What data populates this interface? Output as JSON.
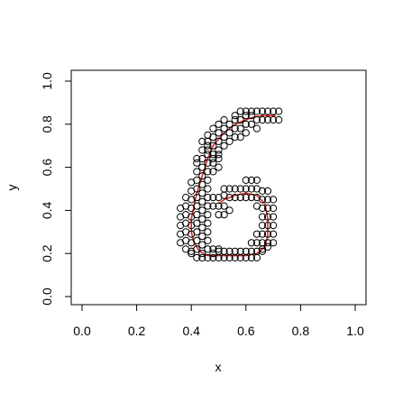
{
  "chart_data": {
    "type": "scatter",
    "title": "",
    "xlabel": "x",
    "ylabel": "y",
    "xlim": [
      0,
      1
    ],
    "ylim": [
      0,
      1
    ],
    "x_ticks": [
      0.0,
      0.2,
      0.4,
      0.6,
      0.8,
      1.0
    ],
    "y_ticks": [
      0.0,
      0.2,
      0.4,
      0.6,
      0.8,
      1.0
    ],
    "x_tick_labels": [
      "0.0",
      "0.2",
      "0.4",
      "0.6",
      "0.8",
      "1.0"
    ],
    "y_tick_labels": [
      "0.0",
      "0.2",
      "0.4",
      "0.6",
      "0.8",
      "1.0"
    ],
    "grid": false,
    "point_color": "#000000",
    "curve_color": "#d62728",
    "series": [
      {
        "kind": "points",
        "x": [
          0.36,
          0.36,
          0.36,
          0.36,
          0.36,
          0.38,
          0.38,
          0.38,
          0.38,
          0.38,
          0.38,
          0.38,
          0.4,
          0.4,
          0.4,
          0.4,
          0.4,
          0.4,
          0.4,
          0.4,
          0.4,
          0.4,
          0.42,
          0.42,
          0.42,
          0.42,
          0.42,
          0.42,
          0.42,
          0.42,
          0.42,
          0.42,
          0.42,
          0.42,
          0.42,
          0.44,
          0.44,
          0.44,
          0.44,
          0.44,
          0.44,
          0.44,
          0.44,
          0.44,
          0.44,
          0.44,
          0.44,
          0.44,
          0.44,
          0.44,
          0.46,
          0.46,
          0.46,
          0.46,
          0.46,
          0.46,
          0.46,
          0.46,
          0.46,
          0.46,
          0.46,
          0.46,
          0.46,
          0.46,
          0.46,
          0.46,
          0.46,
          0.48,
          0.48,
          0.48,
          0.48,
          0.48,
          0.48,
          0.48,
          0.48,
          0.48,
          0.48,
          0.48,
          0.48,
          0.5,
          0.5,
          0.5,
          0.5,
          0.5,
          0.5,
          0.5,
          0.5,
          0.5,
          0.5,
          0.5,
          0.5,
          0.5,
          0.52,
          0.52,
          0.52,
          0.52,
          0.52,
          0.52,
          0.52,
          0.52,
          0.52,
          0.52,
          0.54,
          0.54,
          0.54,
          0.54,
          0.54,
          0.54,
          0.54,
          0.54,
          0.56,
          0.56,
          0.56,
          0.56,
          0.56,
          0.56,
          0.56,
          0.56,
          0.58,
          0.58,
          0.58,
          0.58,
          0.58,
          0.58,
          0.58,
          0.58,
          0.6,
          0.6,
          0.6,
          0.6,
          0.6,
          0.6,
          0.6,
          0.6,
          0.6,
          0.62,
          0.62,
          0.62,
          0.62,
          0.62,
          0.62,
          0.62,
          0.62,
          0.62,
          0.64,
          0.64,
          0.64,
          0.64,
          0.64,
          0.64,
          0.64,
          0.64,
          0.64,
          0.64,
          0.64,
          0.66,
          0.66,
          0.66,
          0.66,
          0.66,
          0.66,
          0.66,
          0.66,
          0.66,
          0.66,
          0.66,
          0.68,
          0.68,
          0.68,
          0.68,
          0.68,
          0.68,
          0.68,
          0.68,
          0.68,
          0.68,
          0.7,
          0.7,
          0.7,
          0.7,
          0.7,
          0.7,
          0.7,
          0.7,
          0.72,
          0.72
        ],
        "y": [
          0.25,
          0.29,
          0.33,
          0.37,
          0.41,
          0.22,
          0.26,
          0.3,
          0.34,
          0.38,
          0.42,
          0.46,
          0.21,
          0.25,
          0.29,
          0.33,
          0.37,
          0.41,
          0.45,
          0.49,
          0.53,
          0.2,
          0.18,
          0.22,
          0.26,
          0.3,
          0.34,
          0.38,
          0.42,
          0.46,
          0.5,
          0.54,
          0.58,
          0.62,
          0.64,
          0.18,
          0.2,
          0.24,
          0.28,
          0.32,
          0.36,
          0.4,
          0.44,
          0.48,
          0.52,
          0.56,
          0.6,
          0.64,
          0.68,
          0.72,
          0.18,
          0.22,
          0.3,
          0.34,
          0.38,
          0.42,
          0.46,
          0.5,
          0.54,
          0.58,
          0.62,
          0.66,
          0.7,
          0.72,
          0.75,
          0.68,
          0.26,
          0.18,
          0.22,
          0.42,
          0.46,
          0.58,
          0.62,
          0.66,
          0.7,
          0.74,
          0.78,
          0.64,
          0.2,
          0.18,
          0.21,
          0.38,
          0.42,
          0.46,
          0.6,
          0.64,
          0.68,
          0.72,
          0.76,
          0.8,
          0.66,
          0.22,
          0.18,
          0.21,
          0.38,
          0.42,
          0.47,
          0.5,
          0.7,
          0.74,
          0.78,
          0.82,
          0.18,
          0.21,
          0.4,
          0.46,
          0.5,
          0.72,
          0.76,
          0.8,
          0.18,
          0.21,
          0.46,
          0.5,
          0.74,
          0.78,
          0.82,
          0.84,
          0.18,
          0.21,
          0.46,
          0.5,
          0.74,
          0.78,
          0.82,
          0.86,
          0.18,
          0.21,
          0.46,
          0.5,
          0.54,
          0.76,
          0.8,
          0.84,
          0.86,
          0.18,
          0.21,
          0.25,
          0.46,
          0.5,
          0.54,
          0.8,
          0.84,
          0.86,
          0.18,
          0.21,
          0.25,
          0.29,
          0.46,
          0.5,
          0.54,
          0.78,
          0.82,
          0.86,
          0.42,
          0.21,
          0.25,
          0.29,
          0.33,
          0.37,
          0.41,
          0.45,
          0.49,
          0.82,
          0.86,
          0.22,
          0.25,
          0.29,
          0.33,
          0.37,
          0.41,
          0.45,
          0.49,
          0.82,
          0.86,
          0.23,
          0.25,
          0.29,
          0.33,
          0.37,
          0.41,
          0.45,
          0.82,
          0.86,
          0.82,
          0.86
        ]
      },
      {
        "kind": "line",
        "x": [
          0.71,
          0.66,
          0.62,
          0.58,
          0.55,
          0.52,
          0.5,
          0.48,
          0.47,
          0.46,
          0.45,
          0.44,
          0.43,
          0.42,
          0.41,
          0.4,
          0.4,
          0.41,
          0.43,
          0.46,
          0.5,
          0.55,
          0.6,
          0.64,
          0.67,
          0.68,
          0.68,
          0.67,
          0.64,
          0.6,
          0.56,
          0.52,
          0.5
        ],
        "y": [
          0.84,
          0.84,
          0.83,
          0.81,
          0.79,
          0.76,
          0.73,
          0.7,
          0.67,
          0.64,
          0.6,
          0.56,
          0.52,
          0.48,
          0.42,
          0.36,
          0.3,
          0.25,
          0.21,
          0.19,
          0.19,
          0.19,
          0.19,
          0.2,
          0.23,
          0.28,
          0.36,
          0.43,
          0.47,
          0.48,
          0.47,
          0.45,
          0.43
        ]
      }
    ]
  }
}
